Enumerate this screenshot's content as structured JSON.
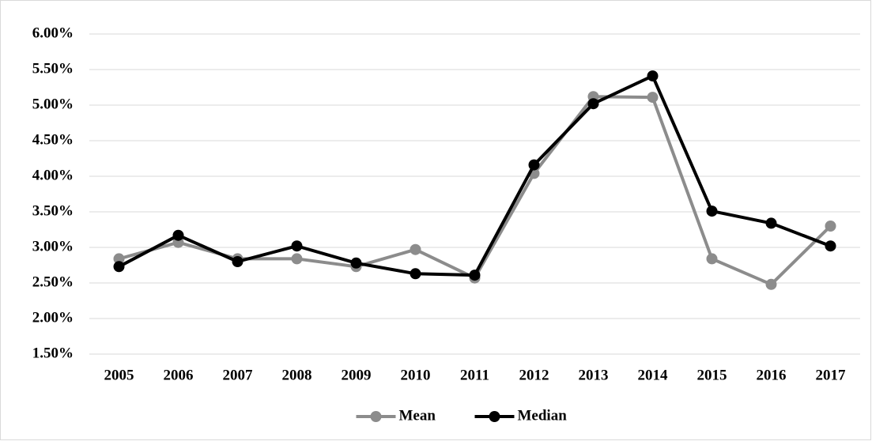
{
  "chart_data": {
    "type": "line",
    "categories": [
      "2005",
      "2006",
      "2007",
      "2008",
      "2009",
      "2010",
      "2011",
      "2012",
      "2013",
      "2014",
      "2015",
      "2016",
      "2017"
    ],
    "series": [
      {
        "name": "Mean",
        "color": "#8c8c8c",
        "values": [
          2.84,
          3.07,
          2.84,
          2.84,
          2.73,
          2.97,
          2.57,
          4.04,
          5.12,
          5.11,
          2.84,
          2.48,
          3.3
        ]
      },
      {
        "name": "Median",
        "color": "#000000",
        "values": [
          2.73,
          3.17,
          2.8,
          3.02,
          2.78,
          2.63,
          2.61,
          4.16,
          5.02,
          5.41,
          3.51,
          3.34,
          3.02
        ]
      }
    ],
    "ylim": [
      1.5,
      6.0
    ],
    "yticks": [
      {
        "value": 1.5,
        "label": "1.50%"
      },
      {
        "value": 2.0,
        "label": "2.00%"
      },
      {
        "value": 2.5,
        "label": "2.50%"
      },
      {
        "value": 3.0,
        "label": "3.00%"
      },
      {
        "value": 3.5,
        "label": "3.50%"
      },
      {
        "value": 4.0,
        "label": "4.00%"
      },
      {
        "value": 4.5,
        "label": "4.50%"
      },
      {
        "value": 5.0,
        "label": "5.00%"
      },
      {
        "value": 5.5,
        "label": "5.50%"
      },
      {
        "value": 6.0,
        "label": "6.00%"
      }
    ],
    "grid": true,
    "legend": "bottom"
  }
}
